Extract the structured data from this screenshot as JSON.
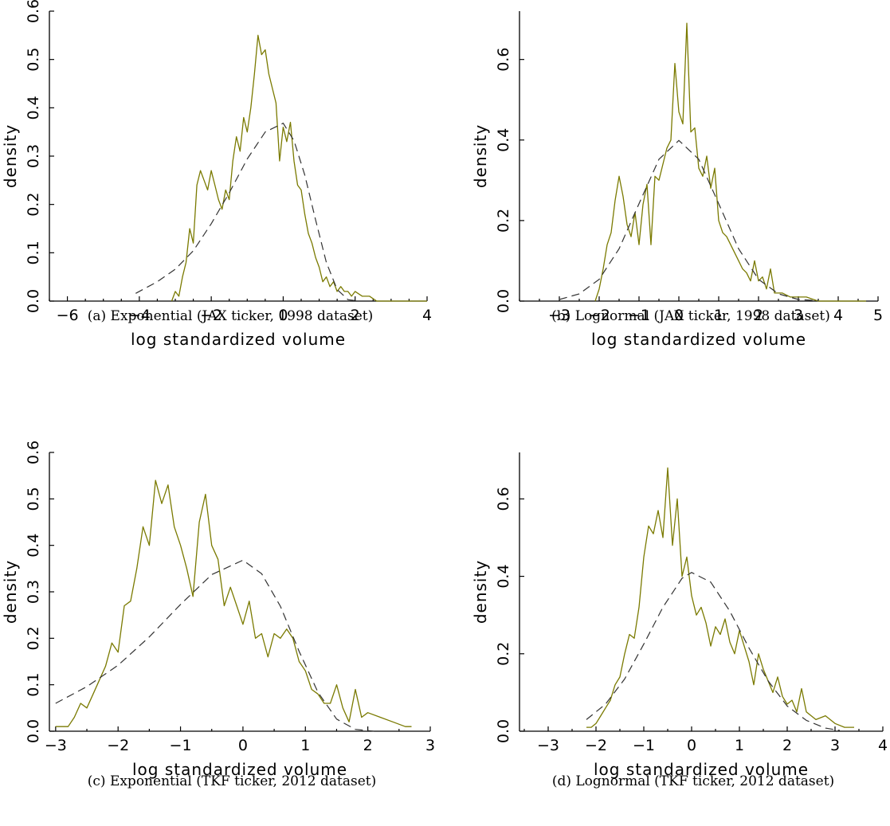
{
  "colors": {
    "empirical": "#7a7a00",
    "fitted": "#333333",
    "axis": "#000000"
  },
  "chart_data": [
    {
      "type": "line",
      "caption": "(a)  Exponential (JAX ticker, 1998 dataset)",
      "xlabel": "log standardized volume",
      "ylabel": "density",
      "xlim": [
        -6.5,
        4
      ],
      "ylim": [
        0,
        0.6
      ],
      "xticks": [
        -6,
        -4,
        -2,
        0,
        2,
        4
      ],
      "yticks": [
        0.0,
        0.1,
        0.2,
        0.3,
        0.4,
        0.5,
        0.6
      ],
      "xtick_labels": [
        "−6",
        "−4",
        "−2",
        "0",
        "2",
        "4"
      ],
      "ytick_labels": [
        "0.0",
        "0.1",
        "0.2",
        "0.3",
        "0.4",
        "0.5",
        "0.6"
      ],
      "series": [
        {
          "style": "solid",
          "x": [
            -3.1,
            -3.0,
            -2.9,
            -2.8,
            -2.7,
            -2.6,
            -2.5,
            -2.4,
            -2.3,
            -2.2,
            -2.1,
            -2.0,
            -1.9,
            -1.8,
            -1.7,
            -1.6,
            -1.5,
            -1.4,
            -1.3,
            -1.2,
            -1.1,
            -1.0,
            -0.9,
            -0.8,
            -0.7,
            -0.6,
            -0.5,
            -0.4,
            -0.3,
            -0.2,
            -0.1,
            0.0,
            0.1,
            0.2,
            0.3,
            0.4,
            0.5,
            0.6,
            0.7,
            0.8,
            0.9,
            1.0,
            1.1,
            1.2,
            1.3,
            1.4,
            1.5,
            1.6,
            1.7,
            1.8,
            1.9,
            2.0,
            2.2,
            2.4,
            2.6,
            2.8,
            3.0,
            3.5,
            4.0
          ],
          "y": [
            0.0,
            0.02,
            0.01,
            0.05,
            0.08,
            0.15,
            0.12,
            0.24,
            0.27,
            0.25,
            0.23,
            0.27,
            0.24,
            0.21,
            0.19,
            0.23,
            0.21,
            0.29,
            0.34,
            0.31,
            0.38,
            0.35,
            0.4,
            0.47,
            0.55,
            0.51,
            0.52,
            0.47,
            0.44,
            0.41,
            0.29,
            0.36,
            0.33,
            0.37,
            0.29,
            0.24,
            0.23,
            0.18,
            0.14,
            0.12,
            0.09,
            0.07,
            0.04,
            0.05,
            0.03,
            0.04,
            0.02,
            0.03,
            0.02,
            0.02,
            0.01,
            0.02,
            0.01,
            0.01,
            0.0,
            0.0,
            0.0,
            0.0,
            0.0
          ]
        },
        {
          "style": "dashed",
          "x": [
            -4.1,
            -3.5,
            -3.0,
            -2.5,
            -2.0,
            -1.5,
            -1.0,
            -0.5,
            0.0,
            0.3,
            0.6,
            0.9,
            1.2,
            1.5,
            1.8,
            2.1
          ],
          "y": [
            0.016,
            0.04,
            0.066,
            0.104,
            0.16,
            0.224,
            0.294,
            0.35,
            0.368,
            0.332,
            0.261,
            0.168,
            0.08,
            0.024,
            0.003,
            0.0
          ]
        }
      ]
    },
    {
      "type": "line",
      "caption": "(b)  Lognormal (JAX ticker, 1998 dataset)",
      "xlabel": "log standardized volume",
      "ylabel": "density",
      "xlim": [
        -4,
        5
      ],
      "ylim": [
        0,
        0.72
      ],
      "xticks": [
        -3,
        -2,
        -1,
        0,
        1,
        2,
        3,
        4,
        5
      ],
      "yticks": [
        0.0,
        0.2,
        0.4,
        0.6
      ],
      "xtick_labels": [
        "−3",
        "−2",
        "−1",
        "0",
        "1",
        "2",
        "3",
        "4",
        "5"
      ],
      "ytick_labels": [
        "0.0",
        "0.2",
        "0.4",
        "0.6"
      ],
      "series": [
        {
          "style": "solid",
          "x": [
            -2.1,
            -2.0,
            -1.9,
            -1.8,
            -1.7,
            -1.6,
            -1.5,
            -1.4,
            -1.3,
            -1.2,
            -1.1,
            -1.0,
            -0.9,
            -0.8,
            -0.7,
            -0.6,
            -0.5,
            -0.4,
            -0.3,
            -0.2,
            -0.1,
            0.0,
            0.1,
            0.2,
            0.3,
            0.4,
            0.5,
            0.6,
            0.7,
            0.8,
            0.9,
            1.0,
            1.1,
            1.2,
            1.3,
            1.4,
            1.5,
            1.6,
            1.7,
            1.8,
            1.9,
            2.0,
            2.1,
            2.2,
            2.3,
            2.4,
            2.6,
            2.8,
            3.0,
            3.2,
            3.5,
            4.0,
            4.7
          ],
          "y": [
            0.0,
            0.03,
            0.08,
            0.14,
            0.17,
            0.25,
            0.31,
            0.26,
            0.19,
            0.16,
            0.22,
            0.14,
            0.24,
            0.29,
            0.14,
            0.31,
            0.3,
            0.34,
            0.38,
            0.4,
            0.59,
            0.47,
            0.44,
            0.69,
            0.42,
            0.43,
            0.33,
            0.31,
            0.36,
            0.28,
            0.33,
            0.2,
            0.17,
            0.16,
            0.14,
            0.12,
            0.1,
            0.08,
            0.07,
            0.05,
            0.1,
            0.05,
            0.06,
            0.03,
            0.08,
            0.02,
            0.02,
            0.01,
            0.01,
            0.01,
            0.0,
            0.0,
            0.0
          ]
        },
        {
          "style": "dashed",
          "x": [
            -3.0,
            -2.5,
            -2.0,
            -1.5,
            -1.0,
            -0.5,
            0.0,
            0.5,
            1.0,
            1.5,
            2.0,
            2.5,
            3.0,
            3.5
          ],
          "y": [
            0.004,
            0.018,
            0.054,
            0.13,
            0.242,
            0.352,
            0.399,
            0.352,
            0.242,
            0.13,
            0.054,
            0.018,
            0.004,
            0.001
          ]
        }
      ]
    },
    {
      "type": "line",
      "caption": "(c)  Exponential (TKF ticker, 2012 dataset)",
      "xlabel": "log standardized volume",
      "ylabel": "density",
      "xlim": [
        -3.1,
        3
      ],
      "ylim": [
        0,
        0.6
      ],
      "xticks": [
        -3,
        -2,
        -1,
        0,
        1,
        2,
        3
      ],
      "yticks": [
        0.0,
        0.1,
        0.2,
        0.3,
        0.4,
        0.5,
        0.6
      ],
      "xtick_labels": [
        "−3",
        "−2",
        "−1",
        "0",
        "1",
        "2",
        "3"
      ],
      "ytick_labels": [
        "0.0",
        "0.1",
        "0.2",
        "0.3",
        "0.4",
        "0.5",
        "0.6"
      ],
      "series": [
        {
          "style": "solid",
          "x": [
            -3.0,
            -2.9,
            -2.8,
            -2.7,
            -2.6,
            -2.5,
            -2.4,
            -2.3,
            -2.2,
            -2.1,
            -2.0,
            -1.9,
            -1.8,
            -1.7,
            -1.6,
            -1.5,
            -1.4,
            -1.3,
            -1.2,
            -1.1,
            -1.0,
            -0.9,
            -0.8,
            -0.7,
            -0.6,
            -0.5,
            -0.4,
            -0.3,
            -0.2,
            -0.1,
            0.0,
            0.1,
            0.2,
            0.3,
            0.4,
            0.5,
            0.6,
            0.7,
            0.8,
            0.9,
            1.0,
            1.1,
            1.2,
            1.3,
            1.4,
            1.5,
            1.6,
            1.7,
            1.8,
            1.9,
            2.0,
            2.2,
            2.4,
            2.6,
            2.7
          ],
          "y": [
            0.01,
            0.01,
            0.01,
            0.03,
            0.06,
            0.05,
            0.08,
            0.11,
            0.14,
            0.19,
            0.17,
            0.27,
            0.28,
            0.35,
            0.44,
            0.4,
            0.54,
            0.49,
            0.53,
            0.44,
            0.4,
            0.35,
            0.29,
            0.45,
            0.51,
            0.4,
            0.37,
            0.27,
            0.31,
            0.27,
            0.23,
            0.28,
            0.2,
            0.21,
            0.16,
            0.21,
            0.2,
            0.22,
            0.2,
            0.15,
            0.13,
            0.09,
            0.08,
            0.06,
            0.06,
            0.1,
            0.05,
            0.02,
            0.09,
            0.03,
            0.04,
            0.03,
            0.02,
            0.01,
            0.01
          ]
        },
        {
          "style": "dashed",
          "x": [
            -3.0,
            -2.5,
            -2.0,
            -1.5,
            -1.0,
            -0.5,
            0.0,
            0.3,
            0.6,
            0.9,
            1.2,
            1.5,
            1.8,
            2.1
          ],
          "y": [
            0.06,
            0.096,
            0.142,
            0.203,
            0.273,
            0.337,
            0.368,
            0.339,
            0.269,
            0.172,
            0.084,
            0.026,
            0.004,
            0.0
          ]
        }
      ]
    },
    {
      "type": "line",
      "caption": "(d)  Lognormal (TKF ticker, 2012 dataset)",
      "xlabel": "log standardized volume",
      "ylabel": "density",
      "xlim": [
        -3.6,
        4
      ],
      "ylim": [
        0,
        0.72
      ],
      "xticks": [
        -3,
        -2,
        -1,
        0,
        1,
        2,
        3,
        4
      ],
      "yticks": [
        0.0,
        0.2,
        0.4,
        0.6
      ],
      "xtick_labels": [
        "−3",
        "−2",
        "−1",
        "0",
        "1",
        "2",
        "3",
        "4"
      ],
      "ytick_labels": [
        "0.0",
        "0.2",
        "0.4",
        "0.6"
      ],
      "series": [
        {
          "style": "solid",
          "x": [
            -2.2,
            -2.1,
            -2.0,
            -1.9,
            -1.8,
            -1.7,
            -1.6,
            -1.5,
            -1.4,
            -1.3,
            -1.2,
            -1.1,
            -1.0,
            -0.9,
            -0.8,
            -0.7,
            -0.6,
            -0.5,
            -0.4,
            -0.3,
            -0.2,
            -0.1,
            0.0,
            0.1,
            0.2,
            0.3,
            0.4,
            0.5,
            0.6,
            0.7,
            0.8,
            0.9,
            1.0,
            1.1,
            1.2,
            1.3,
            1.4,
            1.5,
            1.6,
            1.7,
            1.8,
            1.9,
            2.0,
            2.1,
            2.2,
            2.3,
            2.4,
            2.6,
            2.8,
            3.0,
            3.2,
            3.4
          ],
          "y": [
            0.01,
            0.01,
            0.02,
            0.04,
            0.06,
            0.08,
            0.12,
            0.14,
            0.2,
            0.25,
            0.24,
            0.32,
            0.45,
            0.53,
            0.51,
            0.57,
            0.5,
            0.68,
            0.48,
            0.6,
            0.4,
            0.45,
            0.35,
            0.3,
            0.32,
            0.28,
            0.22,
            0.27,
            0.25,
            0.29,
            0.23,
            0.2,
            0.26,
            0.22,
            0.18,
            0.12,
            0.2,
            0.16,
            0.13,
            0.1,
            0.14,
            0.09,
            0.07,
            0.08,
            0.05,
            0.11,
            0.05,
            0.03,
            0.04,
            0.02,
            0.01,
            0.01
          ]
        },
        {
          "style": "dashed",
          "x": [
            -2.2,
            -1.8,
            -1.4,
            -1.0,
            -0.6,
            -0.2,
            0.0,
            0.4,
            0.8,
            1.2,
            1.6,
            2.0,
            2.4,
            2.8,
            3.1
          ],
          "y": [
            0.03,
            0.07,
            0.135,
            0.225,
            0.32,
            0.395,
            0.41,
            0.385,
            0.31,
            0.215,
            0.13,
            0.065,
            0.028,
            0.008,
            0.002
          ]
        }
      ]
    }
  ]
}
